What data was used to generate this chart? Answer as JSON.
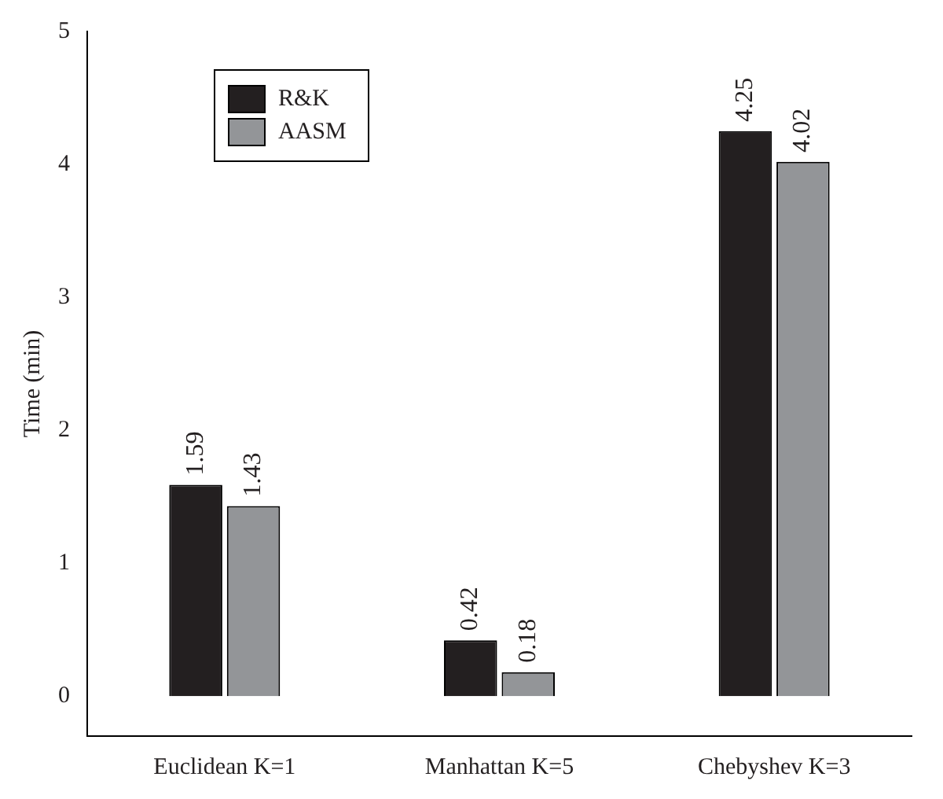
{
  "chart_data": {
    "type": "bar",
    "ylabel": "Time (min)",
    "categories": [
      "Euclidean K=1",
      "Manhattan K=5",
      "Chebyshev K=3"
    ],
    "series": [
      {
        "name": "R&K",
        "color": "#231f20",
        "values": [
          1.59,
          0.42,
          4.25
        ]
      },
      {
        "name": "AASM",
        "color": "#939598",
        "values": [
          1.43,
          0.18,
          4.02
        ]
      }
    ],
    "ylim": [
      -0.3,
      5
    ],
    "yticks": [
      0,
      1,
      2,
      3,
      4,
      5
    ],
    "grid": false,
    "legend": "top left",
    "data_labels": true
  }
}
